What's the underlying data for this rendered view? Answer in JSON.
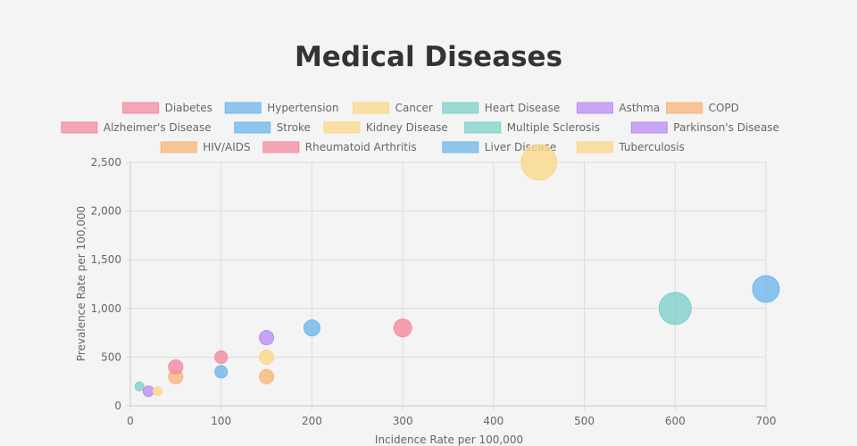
{
  "chart_data": {
    "type": "scatter",
    "title": "Medical Diseases",
    "xlabel": "Incidence Rate per 100,000",
    "ylabel": "Prevalence Rate per 100,000",
    "xlim": [
      0,
      700
    ],
    "ylim": [
      0,
      2500
    ],
    "xticks": [
      0,
      100,
      200,
      300,
      400,
      500,
      600,
      700
    ],
    "yticks": [
      0,
      500,
      1000,
      1500,
      2000,
      2500
    ],
    "grid": true,
    "legend_position": "top",
    "series": [
      {
        "name": "Diabetes",
        "color": "#f48ba1",
        "points": [
          {
            "x": 300,
            "y": 800,
            "r": 10
          }
        ]
      },
      {
        "name": "Hypertension",
        "color": "#6fb7ec",
        "points": [
          {
            "x": 700,
            "y": 1200,
            "r": 15
          }
        ]
      },
      {
        "name": "Cancer",
        "color": "#fbd88a",
        "points": [
          {
            "x": 450,
            "y": 2500,
            "r": 20
          }
        ]
      },
      {
        "name": "Heart Disease",
        "color": "#7fd1cc",
        "points": [
          {
            "x": 600,
            "y": 1000,
            "r": 18
          }
        ]
      },
      {
        "name": "Asthma",
        "color": "#b98ef5",
        "points": [
          {
            "x": 150,
            "y": 700,
            "r": 8
          }
        ]
      },
      {
        "name": "COPD",
        "color": "#f9b67a",
        "points": [
          {
            "x": 50,
            "y": 300,
            "r": 8
          }
        ]
      },
      {
        "name": "Alzheimer's Disease",
        "color": "#f48ba1",
        "points": [
          {
            "x": 50,
            "y": 400,
            "r": 8
          }
        ]
      },
      {
        "name": "Stroke",
        "color": "#6fb7ec",
        "points": [
          {
            "x": 200,
            "y": 800,
            "r": 9
          }
        ]
      },
      {
        "name": "Kidney Disease",
        "color": "#fbd88a",
        "points": [
          {
            "x": 150,
            "y": 500,
            "r": 8
          }
        ]
      },
      {
        "name": "Multiple Sclerosis",
        "color": "#7fd1cc",
        "points": [
          {
            "x": 10,
            "y": 200,
            "r": 5
          }
        ]
      },
      {
        "name": "Parkinson's Disease",
        "color": "#b98ef5",
        "points": [
          {
            "x": 20,
            "y": 150,
            "r": 6
          }
        ]
      },
      {
        "name": "HIV/AIDS",
        "color": "#f9b67a",
        "points": [
          {
            "x": 150,
            "y": 300,
            "r": 8
          }
        ]
      },
      {
        "name": "Rheumatoid Arthritis",
        "color": "#f48ba1",
        "points": [
          {
            "x": 100,
            "y": 500,
            "r": 7
          }
        ]
      },
      {
        "name": "Liver Disease",
        "color": "#6fb7ec",
        "points": [
          {
            "x": 100,
            "y": 350,
            "r": 7
          }
        ]
      },
      {
        "name": "Tuberculosis",
        "color": "#fbd88a",
        "points": [
          {
            "x": 30,
            "y": 150,
            "r": 5
          }
        ]
      }
    ]
  }
}
